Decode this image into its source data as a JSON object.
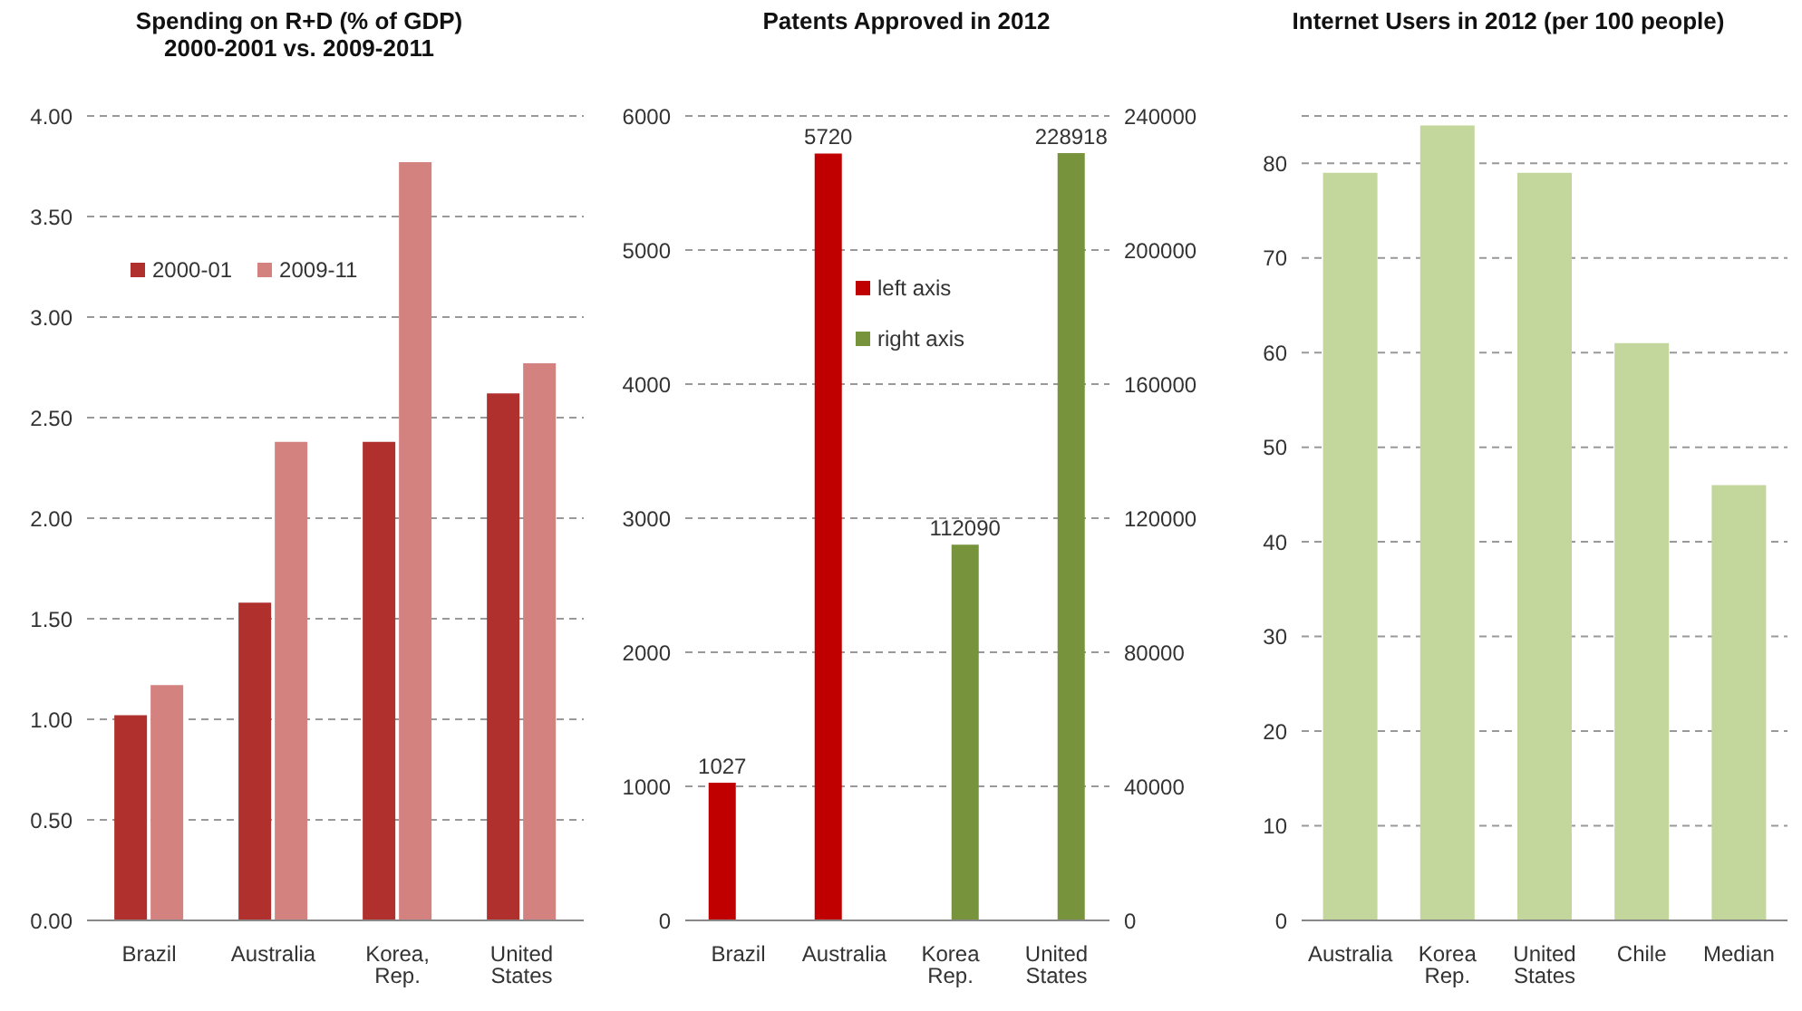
{
  "chart_data": [
    {
      "type": "bar",
      "title": "Spending on R+D (% of GDP)\n2000-2001 vs. 2009-2011",
      "categories": [
        "Brazil",
        "Australia",
        "Korea, Rep.",
        "United States"
      ],
      "series": [
        {
          "name": "2000-01",
          "color": "#b0302e",
          "values": [
            1.02,
            1.58,
            2.38,
            2.62
          ]
        },
        {
          "name": "2009-11",
          "color": "#d4827f",
          "values": [
            1.17,
            2.38,
            3.77,
            2.77
          ]
        }
      ],
      "ylim": [
        0,
        4
      ],
      "yticks": [
        {
          "value": 0,
          "label": "0.00"
        },
        {
          "value": 0.5,
          "label": "0.50"
        },
        {
          "value": 1,
          "label": "1.00"
        },
        {
          "value": 1.5,
          "label": "1.50"
        },
        {
          "value": 2,
          "label": "2.00"
        },
        {
          "value": 2.5,
          "label": "2.50"
        },
        {
          "value": 3,
          "label": "3.00"
        },
        {
          "value": 3.5,
          "label": "3.50"
        },
        {
          "value": 4,
          "label": "4.00"
        }
      ],
      "grid": "y",
      "legend": "top left"
    },
    {
      "type": "bar",
      "title": "Patents Approved in 2012",
      "categories": [
        "Brazil",
        "Australia",
        "Korea Rep.",
        "United States"
      ],
      "series": [
        {
          "name": "left axis",
          "color": "#c00000",
          "values": [
            1027,
            5720,
            null,
            null
          ]
        },
        {
          "name": "right axis",
          "color": "#77933c",
          "axis": "y2",
          "values": [
            null,
            null,
            112090,
            228918
          ]
        }
      ],
      "ylim": [
        0,
        6000
      ],
      "yticks": [
        0,
        1000,
        2000,
        3000,
        4000,
        5000,
        6000
      ],
      "y2lim": [
        0,
        240000
      ],
      "y2ticks": [
        0,
        40000,
        80000,
        120000,
        160000,
        200000,
        240000
      ],
      "data_labels": true,
      "grid": "y",
      "legend": "top"
    },
    {
      "type": "bar",
      "title": "Internet Users in 2012 (per 100 people)",
      "categories": [
        "Australia",
        "Korea Rep.",
        "United States",
        "Chile",
        "Median"
      ],
      "values": [
        79,
        84,
        79,
        61,
        46
      ],
      "color": "#c3d69b",
      "ylim": [
        0,
        85
      ],
      "yticks": [
        0,
        10,
        20,
        30,
        40,
        50,
        60,
        70,
        80
      ],
      "grid": "y"
    }
  ]
}
